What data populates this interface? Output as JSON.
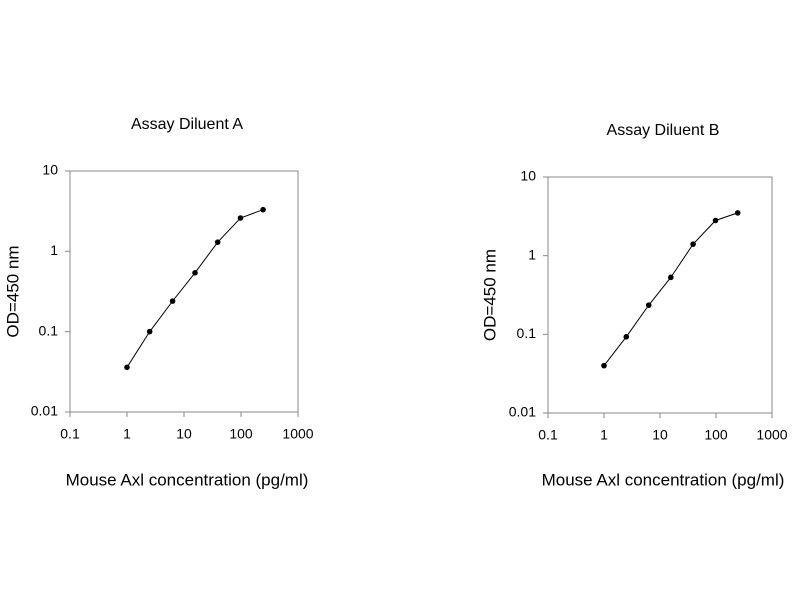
{
  "chart_data": [
    {
      "type": "line",
      "title": "Assay Diluent A",
      "x_label": "Mouse Axl concentration (pg/ml)",
      "y_label": "OD=450 nm",
      "x": [
        1,
        2.5,
        6.3,
        15.6,
        39,
        98,
        244
      ],
      "values": [
        0.036,
        0.1,
        0.24,
        0.54,
        1.3,
        2.6,
        3.3
      ],
      "color": "#000000",
      "xscale": "log",
      "yscale": "log",
      "xlim": [
        0.1,
        1000
      ],
      "ylim": [
        0.01,
        10
      ],
      "xticks": [
        0.1,
        1,
        10,
        100,
        1000
      ],
      "yticks": [
        0.01,
        0.1,
        1,
        10
      ]
    },
    {
      "type": "line",
      "title": "Assay Diluent B",
      "x_label": "Mouse Axl concentration (pg/ml)",
      "y_label": "OD=450 nm",
      "x": [
        1,
        2.5,
        6.3,
        15.6,
        39,
        98,
        244
      ],
      "values": [
        0.04,
        0.093,
        0.235,
        0.53,
        1.4,
        2.8,
        3.5
      ],
      "color": "#000000",
      "xscale": "log",
      "yscale": "log",
      "xlim": [
        0.1,
        1000
      ],
      "ylim": [
        0.01,
        10
      ],
      "xticks": [
        0.1,
        1,
        10,
        100,
        1000
      ],
      "yticks": [
        0.01,
        0.1,
        1,
        10
      ]
    }
  ]
}
